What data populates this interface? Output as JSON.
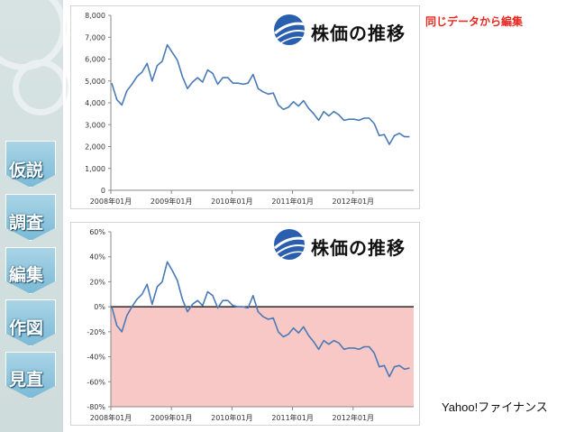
{
  "sidebar": {
    "steps": [
      {
        "label": "仮説"
      },
      {
        "label": "調査"
      },
      {
        "label": "編集"
      },
      {
        "label": "作図"
      },
      {
        "label": "見直"
      }
    ]
  },
  "annotation": {
    "top_right": "同じデータから編集"
  },
  "source": "Yahoo!ファイナンス",
  "colors": {
    "line": "#4a7ab6",
    "negative_region": "#f8c8c6",
    "note": "#e8261f",
    "step": "#8cc4dc"
  },
  "chart_data": [
    {
      "type": "line",
      "title": "株価の推移",
      "x_ticks": [
        "2008年01月",
        "2009年01月",
        "2010年01月",
        "2011年01月",
        "2012年01月"
      ],
      "y_ticks": [
        "0",
        "1,000",
        "2,000",
        "3,000",
        "4,000",
        "5,000",
        "6,000",
        "7,000",
        "8,000"
      ],
      "ylim": [
        0,
        8000
      ],
      "x_start": "2008-01",
      "x_end": "2012-12",
      "series": [
        {
          "values": [
            4900,
            4150,
            3900,
            4550,
            4850,
            5200,
            5400,
            5800,
            5000,
            5700,
            5900,
            6650,
            6300,
            5950,
            5200,
            4650,
            4950,
            5150,
            4950,
            5500,
            5350,
            4850,
            5150,
            5150,
            4900,
            4900,
            4850,
            4900,
            5300,
            4650,
            4500,
            4400,
            4450,
            3900,
            3700,
            3800,
            4050,
            3850,
            4100,
            3750,
            3500,
            3200,
            3600,
            3400,
            3600,
            3450,
            3200,
            3250,
            3250,
            3200,
            3300,
            3300,
            3050,
            2500,
            2550,
            2100,
            2500,
            2600,
            2450,
            2450
          ]
        }
      ]
    },
    {
      "type": "line",
      "title": "株価の推移",
      "x_ticks": [
        "2008年01月",
        "2009年01月",
        "2010年01月",
        "2011年01月",
        "2012年01月"
      ],
      "y_ticks": [
        "60%",
        "40%",
        "20%",
        "0%",
        "-20%",
        "-40%",
        "-60%",
        "-80%"
      ],
      "ylim": [
        -80,
        60
      ],
      "x_start": "2008-01",
      "x_end": "2012-12",
      "shaded_region": "below 0%",
      "series": [
        {
          "values": [
            0,
            -15,
            -20,
            -7,
            0,
            6,
            10,
            18,
            2,
            16,
            20,
            36,
            29,
            21,
            6,
            -4,
            2,
            5,
            1,
            12,
            9,
            -1,
            5,
            5,
            1,
            0,
            0,
            -1,
            9,
            -4,
            -8,
            -10,
            -9,
            -20,
            -24,
            -22,
            -17,
            -21,
            -16,
            -23,
            -28,
            -34,
            -27,
            -30,
            -27,
            -29,
            -34,
            -33,
            -33,
            -34,
            -32,
            -32,
            -37,
            -48,
            -47,
            -56,
            -48,
            -47,
            -50,
            -49
          ]
        }
      ]
    }
  ]
}
